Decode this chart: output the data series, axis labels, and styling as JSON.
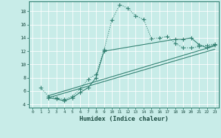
{
  "xlabel": "Humidex (Indice chaleur)",
  "background_color": "#c8ece8",
  "grid_color": "#aad4ce",
  "line_color": "#2e7d6e",
  "xlim": [
    -0.5,
    23.5
  ],
  "ylim": [
    3.5,
    19.5
  ],
  "xticks": [
    0,
    1,
    2,
    3,
    4,
    5,
    6,
    7,
    8,
    9,
    10,
    11,
    12,
    13,
    14,
    15,
    16,
    17,
    18,
    19,
    20,
    21,
    22,
    23
  ],
  "yticks": [
    4,
    6,
    8,
    10,
    12,
    14,
    16,
    18
  ],
  "series": [
    {
      "x": [
        1,
        2,
        3,
        4,
        5,
        6,
        7,
        8,
        9,
        10,
        11,
        12,
        13,
        14,
        15,
        16,
        17,
        18,
        19,
        20,
        21,
        22,
        23
      ],
      "y": [
        6.5,
        5.2,
        5.0,
        4.7,
        5.2,
        6.3,
        7.8,
        8.5,
        12.2,
        16.7,
        19.0,
        18.5,
        17.3,
        16.8,
        13.9,
        14.0,
        14.2,
        13.2,
        12.5,
        12.5,
        12.7,
        12.9,
        13.1
      ],
      "marker": "+",
      "markersize": 4,
      "linewidth": 0.8,
      "linestyle": "dotted"
    },
    {
      "x": [
        2,
        3,
        4,
        5,
        6,
        7,
        8,
        9,
        18,
        19,
        20,
        21,
        22,
        23
      ],
      "y": [
        5.0,
        4.8,
        4.5,
        5.0,
        5.8,
        6.5,
        8.0,
        12.0,
        13.8,
        13.8,
        14.0,
        13.0,
        12.5,
        13.0
      ],
      "marker": "+",
      "markersize": 4,
      "linewidth": 0.8,
      "linestyle": "-"
    },
    {
      "x": [
        2,
        23
      ],
      "y": [
        5.0,
        12.3
      ],
      "marker": null,
      "markersize": 0,
      "linewidth": 0.8,
      "linestyle": "-"
    },
    {
      "x": [
        2,
        23
      ],
      "y": [
        5.3,
        12.8
      ],
      "marker": null,
      "markersize": 0,
      "linewidth": 0.8,
      "linestyle": "-"
    }
  ]
}
